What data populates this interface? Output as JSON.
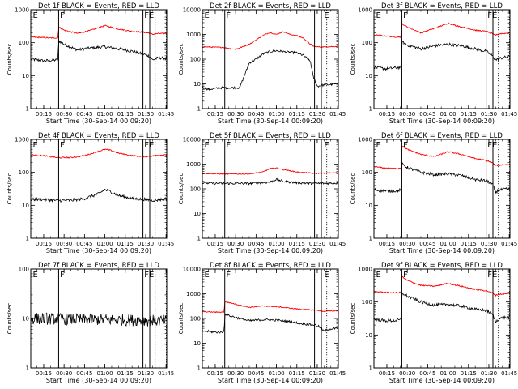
{
  "figure": {
    "ylabel": "Counts/sec",
    "xlabel": "Start Time (30-Sep-14 00:09:20)",
    "x_tick_labels": [
      "00:15",
      "00:30",
      "00:45",
      "01:00",
      "01:15",
      "01:30",
      "01:45"
    ],
    "colors": {
      "events": "#000000",
      "lld": "#ff0000"
    }
  },
  "chart_data": [
    {
      "type": "line",
      "title": "Det 1f BLACK = Events, RED = LLD",
      "x_range_min": [
        5.5,
        105.5
      ],
      "ylim": [
        1,
        1000
      ],
      "y_scale": "log",
      "y_tick_labels": [
        "1",
        "10",
        "100",
        "1000"
      ],
      "solid_vlines_min": [
        26,
        88,
        93
      ],
      "dotted_vlines_min": [
        97,
        106
      ],
      "annotations": [
        {
          "text": "E",
          "x_min": 7
        },
        {
          "text": "F",
          "x_min": 27
        },
        {
          "text": "FE",
          "x_min": 89
        }
      ],
      "series": [
        {
          "name": "BLACK = Events",
          "x_min": [
            5.5,
            10,
            15,
            20,
            25.5,
            26,
            30,
            40,
            50,
            60,
            70,
            80,
            88,
            91,
            93,
            95,
            97,
            100,
            105.5
          ],
          "y": [
            32,
            30,
            28,
            29,
            30,
            115,
            90,
            60,
            70,
            75,
            65,
            55,
            45,
            42,
            38,
            30,
            32,
            35,
            33
          ]
        },
        {
          "name": "RED = LLD",
          "x_min": [
            5.5,
            10,
            15,
            20,
            25.5,
            26,
            30,
            40,
            50,
            60,
            70,
            80,
            88,
            91,
            93,
            95,
            97,
            100,
            105.5
          ],
          "y": [
            150,
            145,
            142,
            140,
            140,
            300,
            240,
            190,
            240,
            330,
            260,
            220,
            210,
            200,
            195,
            180,
            185,
            190,
            190
          ]
        }
      ]
    },
    {
      "type": "line",
      "title": "Det 2f BLACK = Events, RED = LLD",
      "x_range_min": [
        5.5,
        105.5
      ],
      "ylim": [
        1,
        10000
      ],
      "y_scale": "log",
      "y_tick_labels": [
        "1",
        "10",
        "100",
        "1000",
        "10000"
      ],
      "solid_vlines_min": [
        22,
        88,
        93
      ],
      "dotted_vlines_min": [
        97,
        106
      ],
      "annotations": [
        {
          "text": "E",
          "x_min": 7
        },
        {
          "text": "F",
          "x_min": 23
        },
        {
          "text": "E",
          "x_min": 95
        }
      ],
      "series": [
        {
          "name": "BLACK = Events",
          "x_min": [
            5.5,
            10,
            20,
            28,
            33,
            40,
            45,
            50,
            55,
            60,
            65,
            70,
            75,
            80,
            85,
            87,
            90,
            95,
            105.5
          ],
          "y": [
            7,
            6,
            7,
            7,
            7,
            70,
            100,
            160,
            200,
            220,
            200,
            190,
            180,
            140,
            80,
            20,
            8,
            9,
            10
          ]
        },
        {
          "name": "RED = LLD",
          "x_min": [
            5.5,
            10,
            20,
            30,
            40,
            45,
            50,
            55,
            60,
            65,
            70,
            75,
            80,
            85,
            88,
            93,
            105.5
          ],
          "y": [
            320,
            310,
            300,
            250,
            400,
            600,
            900,
            1200,
            1000,
            1300,
            1000,
            900,
            700,
            400,
            320,
            310,
            330
          ]
        }
      ]
    },
    {
      "type": "line",
      "title": "Det 3f BLACK = Events, RED = LLD",
      "x_range_min": [
        5.5,
        105.5
      ],
      "ylim": [
        1,
        1000
      ],
      "y_scale": "log",
      "y_tick_labels": [
        "1",
        "10",
        "100",
        "1000"
      ],
      "solid_vlines_min": [
        26,
        88,
        93
      ],
      "dotted_vlines_min": [
        97,
        106
      ],
      "annotations": [
        {
          "text": "E",
          "x_min": 7
        },
        {
          "text": "F",
          "x_min": 27
        },
        {
          "text": "FE",
          "x_min": 89
        }
      ],
      "series": [
        {
          "name": "BLACK = Events",
          "x_min": [
            5.5,
            10,
            15,
            20,
            25.5,
            26,
            30,
            40,
            50,
            60,
            70,
            80,
            88,
            91,
            93,
            95,
            97,
            100,
            105.5
          ],
          "y": [
            18,
            17,
            16,
            17,
            18,
            110,
            85,
            65,
            80,
            90,
            80,
            65,
            55,
            45,
            38,
            30,
            32,
            35,
            38
          ]
        },
        {
          "name": "RED = LLD",
          "x_min": [
            5.5,
            10,
            15,
            20,
            25.5,
            26,
            30,
            40,
            50,
            60,
            70,
            80,
            88,
            91,
            93,
            95,
            97,
            100,
            105.5
          ],
          "y": [
            170,
            165,
            160,
            150,
            150,
            380,
            300,
            200,
            270,
            390,
            300,
            240,
            220,
            200,
            180,
            170,
            185,
            190,
            195
          ]
        }
      ]
    },
    {
      "type": "line",
      "title": "Det 4f BLACK = Events, RED = LLD",
      "x_range_min": [
        5.5,
        105.5
      ],
      "ylim": [
        1,
        1000
      ],
      "y_scale": "log",
      "y_tick_labels": [
        "1",
        "10",
        "100",
        "1000"
      ],
      "solid_vlines_min": [
        26,
        88,
        93
      ],
      "dotted_vlines_min": [
        97,
        106
      ],
      "annotations": [
        {
          "text": "E",
          "x_min": 7
        },
        {
          "text": "F",
          "x_min": 27
        },
        {
          "text": "FE",
          "x_min": 89
        }
      ],
      "series": [
        {
          "name": "BLACK = Events",
          "x_min": [
            5.5,
            15,
            25,
            35,
            45,
            55,
            60,
            65,
            70,
            80,
            90,
            97,
            105.5
          ],
          "y": [
            15,
            15,
            14,
            14,
            16,
            22,
            30,
            25,
            20,
            16,
            15,
            14,
            16
          ]
        },
        {
          "name": "RED = LLD",
          "x_min": [
            5.5,
            15,
            25,
            35,
            45,
            55,
            60,
            65,
            70,
            80,
            90,
            97,
            105.5
          ],
          "y": [
            340,
            320,
            280,
            280,
            320,
            430,
            500,
            460,
            380,
            320,
            300,
            320,
            350
          ]
        }
      ]
    },
    {
      "type": "line",
      "title": "Det 5f BLACK = Events, RED = LLD",
      "x_range_min": [
        5.5,
        105.5
      ],
      "ylim": [
        1,
        10000
      ],
      "y_scale": "log",
      "y_tick_labels": [
        "1",
        "10",
        "100",
        "1000",
        "10000"
      ],
      "solid_vlines_min": [
        22,
        88,
        93
      ],
      "dotted_vlines_min": [
        97,
        106
      ],
      "annotations": [
        {
          "text": "E",
          "x_min": 7
        },
        {
          "text": "F",
          "x_min": 23
        },
        {
          "text": "E",
          "x_min": 95
        }
      ],
      "series": [
        {
          "name": "BLACK = Events",
          "x_min": [
            5.5,
            20,
            40,
            55,
            60,
            65,
            75,
            88,
            105.5
          ],
          "y": [
            170,
            165,
            165,
            185,
            240,
            200,
            175,
            165,
            170
          ]
        },
        {
          "name": "RED = LLD",
          "x_min": [
            5.5,
            20,
            40,
            50,
            55,
            60,
            65,
            75,
            88,
            105.5
          ],
          "y": [
            420,
            400,
            400,
            480,
            650,
            700,
            600,
            480,
            420,
            450
          ]
        }
      ]
    },
    {
      "type": "line",
      "title": "Det 6f BLACK = Events, RED = LLD",
      "x_range_min": [
        5.5,
        105.5
      ],
      "ylim": [
        1,
        1000
      ],
      "y_scale": "log",
      "y_tick_labels": [
        "1",
        "10",
        "100",
        "1000"
      ],
      "solid_vlines_min": [
        26,
        88,
        93
      ],
      "dotted_vlines_min": [
        97,
        106
      ],
      "annotations": [
        {
          "text": "E",
          "x_min": 7
        },
        {
          "text": "F",
          "x_min": 27
        },
        {
          "text": "FE",
          "x_min": 89
        }
      ],
      "series": [
        {
          "name": "BLACK = Events",
          "x_min": [
            5.5,
            10,
            15,
            20,
            25.5,
            26,
            30,
            40,
            50,
            60,
            70,
            80,
            88,
            91,
            93,
            95,
            97,
            100,
            105.5
          ],
          "y": [
            30,
            28,
            27,
            27,
            29,
            180,
            140,
            100,
            85,
            90,
            80,
            60,
            55,
            48,
            40,
            25,
            28,
            30,
            32
          ]
        },
        {
          "name": "RED = LLD",
          "x_min": [
            5.5,
            10,
            15,
            20,
            25.5,
            26,
            30,
            40,
            50,
            60,
            70,
            80,
            88,
            91,
            93,
            95,
            97,
            100,
            105.5
          ],
          "y": [
            150,
            140,
            135,
            130,
            135,
            650,
            500,
            350,
            300,
            420,
            350,
            260,
            230,
            210,
            190,
            160,
            165,
            170,
            175
          ]
        }
      ]
    },
    {
      "type": "line",
      "title": "Det 7f BLACK = Events, RED = LLD",
      "x_range_min": [
        5.5,
        105.5
      ],
      "ylim": [
        1,
        100
      ],
      "y_scale": "log",
      "y_tick_labels": [
        "1",
        "10",
        "100"
      ],
      "solid_vlines_min": [
        26,
        88,
        93
      ],
      "dotted_vlines_min": [
        97,
        106
      ],
      "annotations": [
        {
          "text": "E",
          "x_min": 7
        },
        {
          "text": "F",
          "x_min": 27
        },
        {
          "text": "FE",
          "x_min": 89
        }
      ],
      "series": [
        {
          "name": "BLACK = Events",
          "x_min": [
            5.5,
            105.5
          ],
          "y": [
            10,
            9
          ]
        }
      ]
    },
    {
      "type": "line",
      "title": "Det 8f BLACK = Events, RED = LLD",
      "x_range_min": [
        5.5,
        105.5
      ],
      "ylim": [
        1,
        10000
      ],
      "y_scale": "log",
      "y_tick_labels": [
        "1",
        "10",
        "100",
        "1000",
        "10000"
      ],
      "solid_vlines_min": [
        22,
        88,
        93
      ],
      "dotted_vlines_min": [
        97,
        106
      ],
      "annotations": [
        {
          "text": "E",
          "x_min": 7
        },
        {
          "text": "F",
          "x_min": 23
        },
        {
          "text": "E",
          "x_min": 95
        }
      ],
      "series": [
        {
          "name": "BLACK = Events",
          "x_min": [
            5.5,
            10,
            15,
            20,
            21.5,
            22,
            30,
            40,
            50,
            60,
            70,
            80,
            88,
            91,
            93,
            95,
            97,
            100,
            105.5
          ],
          "y": [
            32,
            30,
            28,
            28,
            30,
            150,
            110,
            80,
            90,
            85,
            75,
            60,
            55,
            48,
            40,
            30,
            35,
            38,
            40
          ]
        },
        {
          "name": "RED = LLD",
          "x_min": [
            5.5,
            10,
            15,
            20,
            21.5,
            22,
            30,
            40,
            50,
            60,
            70,
            80,
            88,
            91,
            93,
            95,
            97,
            100,
            105.5
          ],
          "y": [
            190,
            185,
            180,
            180,
            185,
            480,
            380,
            280,
            320,
            300,
            260,
            230,
            220,
            210,
            200,
            195,
            200,
            200,
            210
          ]
        }
      ]
    },
    {
      "type": "line",
      "title": "Det 9f BLACK = Events, RED = LLD",
      "x_range_min": [
        5.5,
        105.5
      ],
      "ylim": [
        1,
        1000
      ],
      "y_scale": "log",
      "y_tick_labels": [
        "1",
        "10",
        "100",
        "1000"
      ],
      "solid_vlines_min": [
        26,
        88,
        93
      ],
      "dotted_vlines_min": [
        97,
        106
      ],
      "annotations": [
        {
          "text": "E",
          "x_min": 7
        },
        {
          "text": "F",
          "x_min": 27
        },
        {
          "text": "FE",
          "x_min": 89
        }
      ],
      "series": [
        {
          "name": "BLACK = Events",
          "x_min": [
            5.5,
            10,
            15,
            20,
            25.5,
            26,
            30,
            40,
            50,
            60,
            70,
            80,
            88,
            91,
            93,
            95,
            97,
            100,
            105.5
          ],
          "y": [
            30,
            28,
            27,
            27,
            29,
            190,
            150,
            100,
            80,
            85,
            75,
            60,
            55,
            48,
            40,
            25,
            30,
            33,
            35
          ]
        },
        {
          "name": "RED = LLD",
          "x_min": [
            5.5,
            10,
            15,
            20,
            25.5,
            26,
            30,
            40,
            50,
            60,
            70,
            80,
            88,
            91,
            93,
            95,
            97,
            100,
            105.5
          ],
          "y": [
            210,
            200,
            195,
            190,
            195,
            600,
            450,
            320,
            300,
            370,
            300,
            240,
            220,
            200,
            185,
            160,
            170,
            175,
            180
          ]
        }
      ]
    }
  ]
}
